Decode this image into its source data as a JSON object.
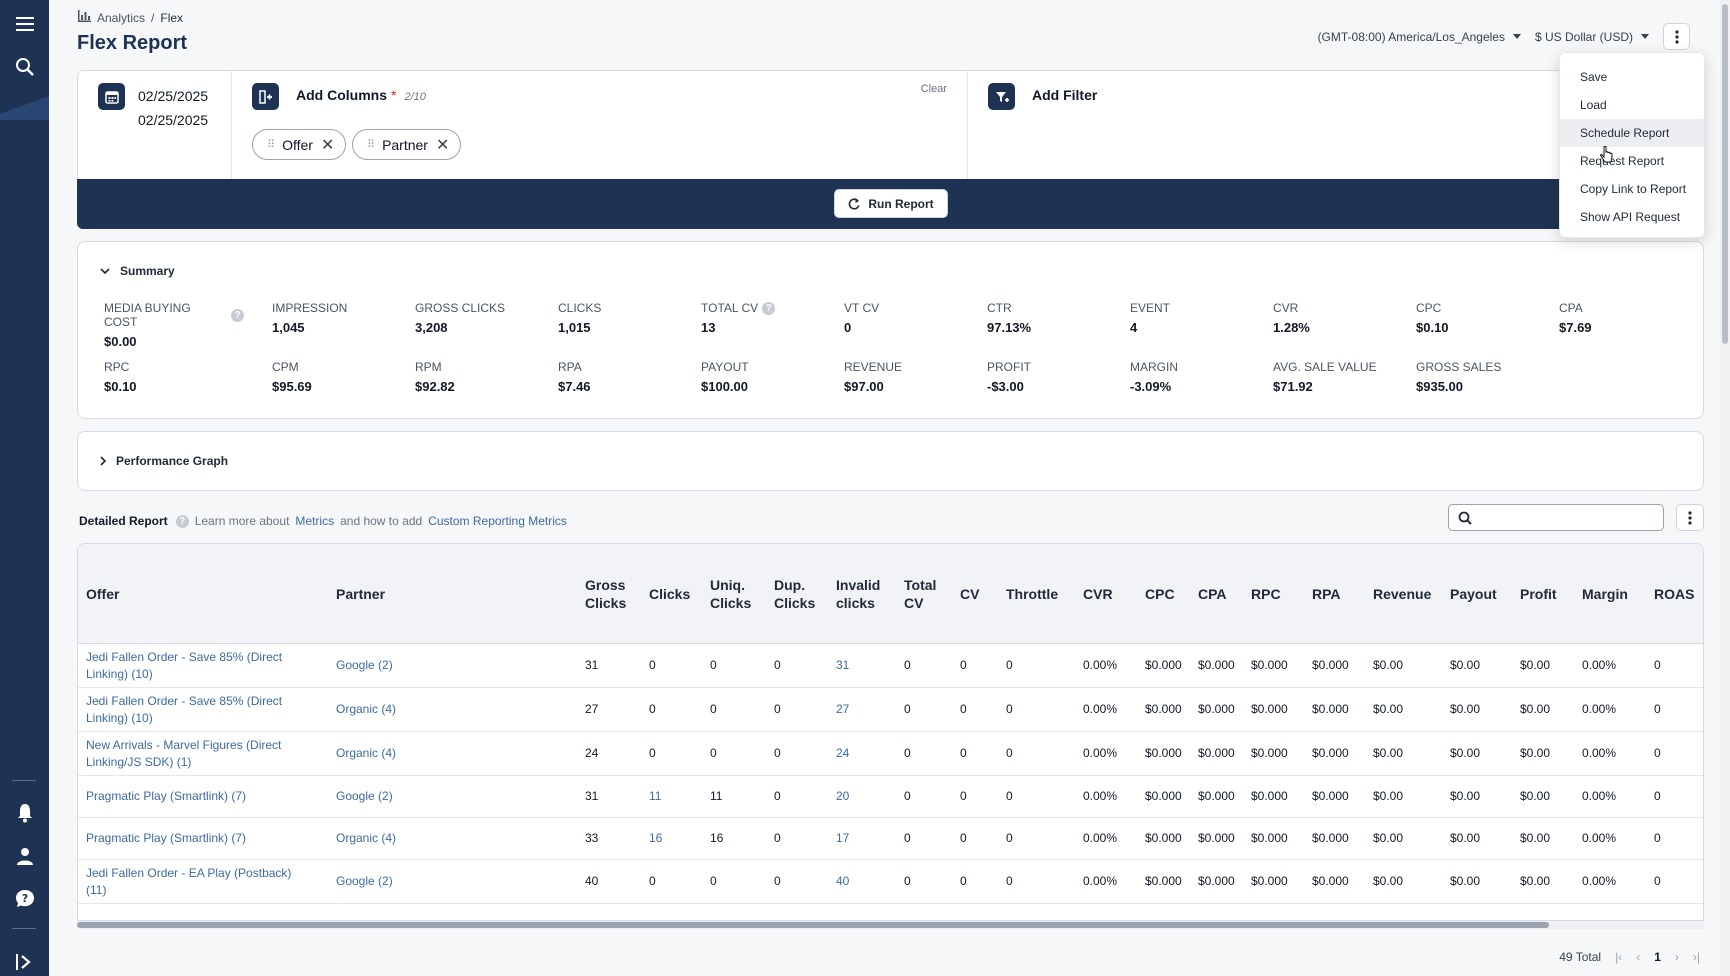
{
  "breadcrumb": {
    "parent": "Analytics",
    "separator": "/",
    "current": "Flex"
  },
  "page_title": "Flex Report",
  "timezone": "(GMT-08:00) America/Los_Angeles",
  "currency": "$ US Dollar (USD)",
  "date_range": {
    "start": "02/25/2025",
    "end": "02/25/2025"
  },
  "columns": {
    "title": "Add Columns",
    "required_mark": "*",
    "count": "2/10",
    "clear": "Clear",
    "chips": [
      "Offer",
      "Partner"
    ]
  },
  "filter": {
    "title": "Add Filter"
  },
  "run_button": "Run Report",
  "menu": {
    "items": [
      "Save",
      "Load",
      "Schedule Report",
      "Request Report",
      "Copy Link to Report",
      "Show API Request"
    ],
    "hovered": "Schedule Report"
  },
  "summary": {
    "title": "Summary",
    "metrics_row1": [
      {
        "label": "MEDIA BUYING COST",
        "value": "$0.00",
        "help": true
      },
      {
        "label": "IMPRESSION",
        "value": "1,045"
      },
      {
        "label": "GROSS CLICKS",
        "value": "3,208"
      },
      {
        "label": "CLICKS",
        "value": "1,015"
      },
      {
        "label": "TOTAL CV",
        "value": "13",
        "help": true
      },
      {
        "label": "VT CV",
        "value": "0"
      },
      {
        "label": "CTR",
        "value": "97.13%"
      },
      {
        "label": "EVENT",
        "value": "4"
      },
      {
        "label": "CVR",
        "value": "1.28%"
      },
      {
        "label": "CPC",
        "value": "$0.10"
      },
      {
        "label": "CPA",
        "value": "$7.69"
      }
    ],
    "metrics_row2": [
      {
        "label": "RPC",
        "value": "$0.10"
      },
      {
        "label": "CPM",
        "value": "$95.69"
      },
      {
        "label": "RPM",
        "value": "$92.82"
      },
      {
        "label": "RPA",
        "value": "$7.46"
      },
      {
        "label": "PAYOUT",
        "value": "$100.00"
      },
      {
        "label": "REVENUE",
        "value": "$97.00"
      },
      {
        "label": "PROFIT",
        "value": "-$3.00"
      },
      {
        "label": "MARGIN",
        "value": "-3.09%"
      },
      {
        "label": "AVG. SALE VALUE",
        "value": "$71.92"
      },
      {
        "label": "GROSS SALES",
        "value": "$935.00"
      }
    ]
  },
  "performance_graph": {
    "title": "Performance Graph"
  },
  "detailed": {
    "title": "Detailed Report",
    "help_prefix": "Learn more about",
    "metrics_link": "Metrics",
    "help_middle": "and how to add",
    "custom_link": "Custom Reporting Metrics",
    "search_placeholder": ""
  },
  "table": {
    "headers": [
      "Offer",
      "Partner",
      "Gross Clicks",
      "Clicks",
      "Uniq. Clicks",
      "Dup. Clicks",
      "Invalid clicks",
      "Total CV",
      "CV",
      "Throttle",
      "CVR",
      "CPC",
      "CPA",
      "RPC",
      "RPA",
      "Revenue",
      "Payout",
      "Profit",
      "Margin",
      "ROAS"
    ],
    "rows": [
      [
        "Jedi Fallen Order - Save 85% (Direct Linking) (10)",
        "Google (2)",
        "31",
        "0",
        "0",
        "0",
        "31",
        "0",
        "0",
        "0",
        "0.00%",
        "$0.000",
        "$0.000",
        "$0.000",
        "$0.000",
        "$0.00",
        "$0.00",
        "$0.00",
        "0.00%",
        "0"
      ],
      [
        "Jedi Fallen Order - Save 85% (Direct Linking) (10)",
        "Organic (4)",
        "27",
        "0",
        "0",
        "0",
        "27",
        "0",
        "0",
        "0",
        "0.00%",
        "$0.000",
        "$0.000",
        "$0.000",
        "$0.000",
        "$0.00",
        "$0.00",
        "$0.00",
        "0.00%",
        "0"
      ],
      [
        "New Arrivals - Marvel Figures (Direct Linking/JS SDK) (1)",
        "Organic (4)",
        "24",
        "0",
        "0",
        "0",
        "24",
        "0",
        "0",
        "0",
        "0.00%",
        "$0.000",
        "$0.000",
        "$0.000",
        "$0.000",
        "$0.00",
        "$0.00",
        "$0.00",
        "0.00%",
        "0"
      ],
      [
        "Pragmatic Play (Smartlink) (7)",
        "Google (2)",
        "31",
        "11",
        "11",
        "0",
        "20",
        "0",
        "0",
        "0",
        "0.00%",
        "$0.000",
        "$0.000",
        "$0.000",
        "$0.000",
        "$0.00",
        "$0.00",
        "$0.00",
        "0.00%",
        "0"
      ],
      [
        "Pragmatic Play (Smartlink) (7)",
        "Organic (4)",
        "33",
        "16",
        "16",
        "0",
        "17",
        "0",
        "0",
        "0",
        "0.00%",
        "$0.000",
        "$0.000",
        "$0.000",
        "$0.000",
        "$0.00",
        "$0.00",
        "$0.00",
        "0.00%",
        "0"
      ],
      [
        "Jedi Fallen Order - EA Play (Postback) (11)",
        "Google (2)",
        "40",
        "0",
        "0",
        "0",
        "40",
        "0",
        "0",
        "0",
        "0.00%",
        "$0.000",
        "$0.000",
        "$0.000",
        "$0.000",
        "$0.00",
        "$0.00",
        "$0.00",
        "0.00%",
        "0"
      ]
    ]
  },
  "footer": {
    "total": "49 Total",
    "page": "1"
  },
  "icons": {
    "menu": "hamburger-icon",
    "search": "search-icon",
    "bell": "bell-icon",
    "user": "user-icon",
    "help": "help-icon",
    "expand": "expand-sidebar-icon"
  },
  "colors": {
    "brand": "#1e3354",
    "link": "#3b6aa0",
    "danger": "#dc2626"
  }
}
